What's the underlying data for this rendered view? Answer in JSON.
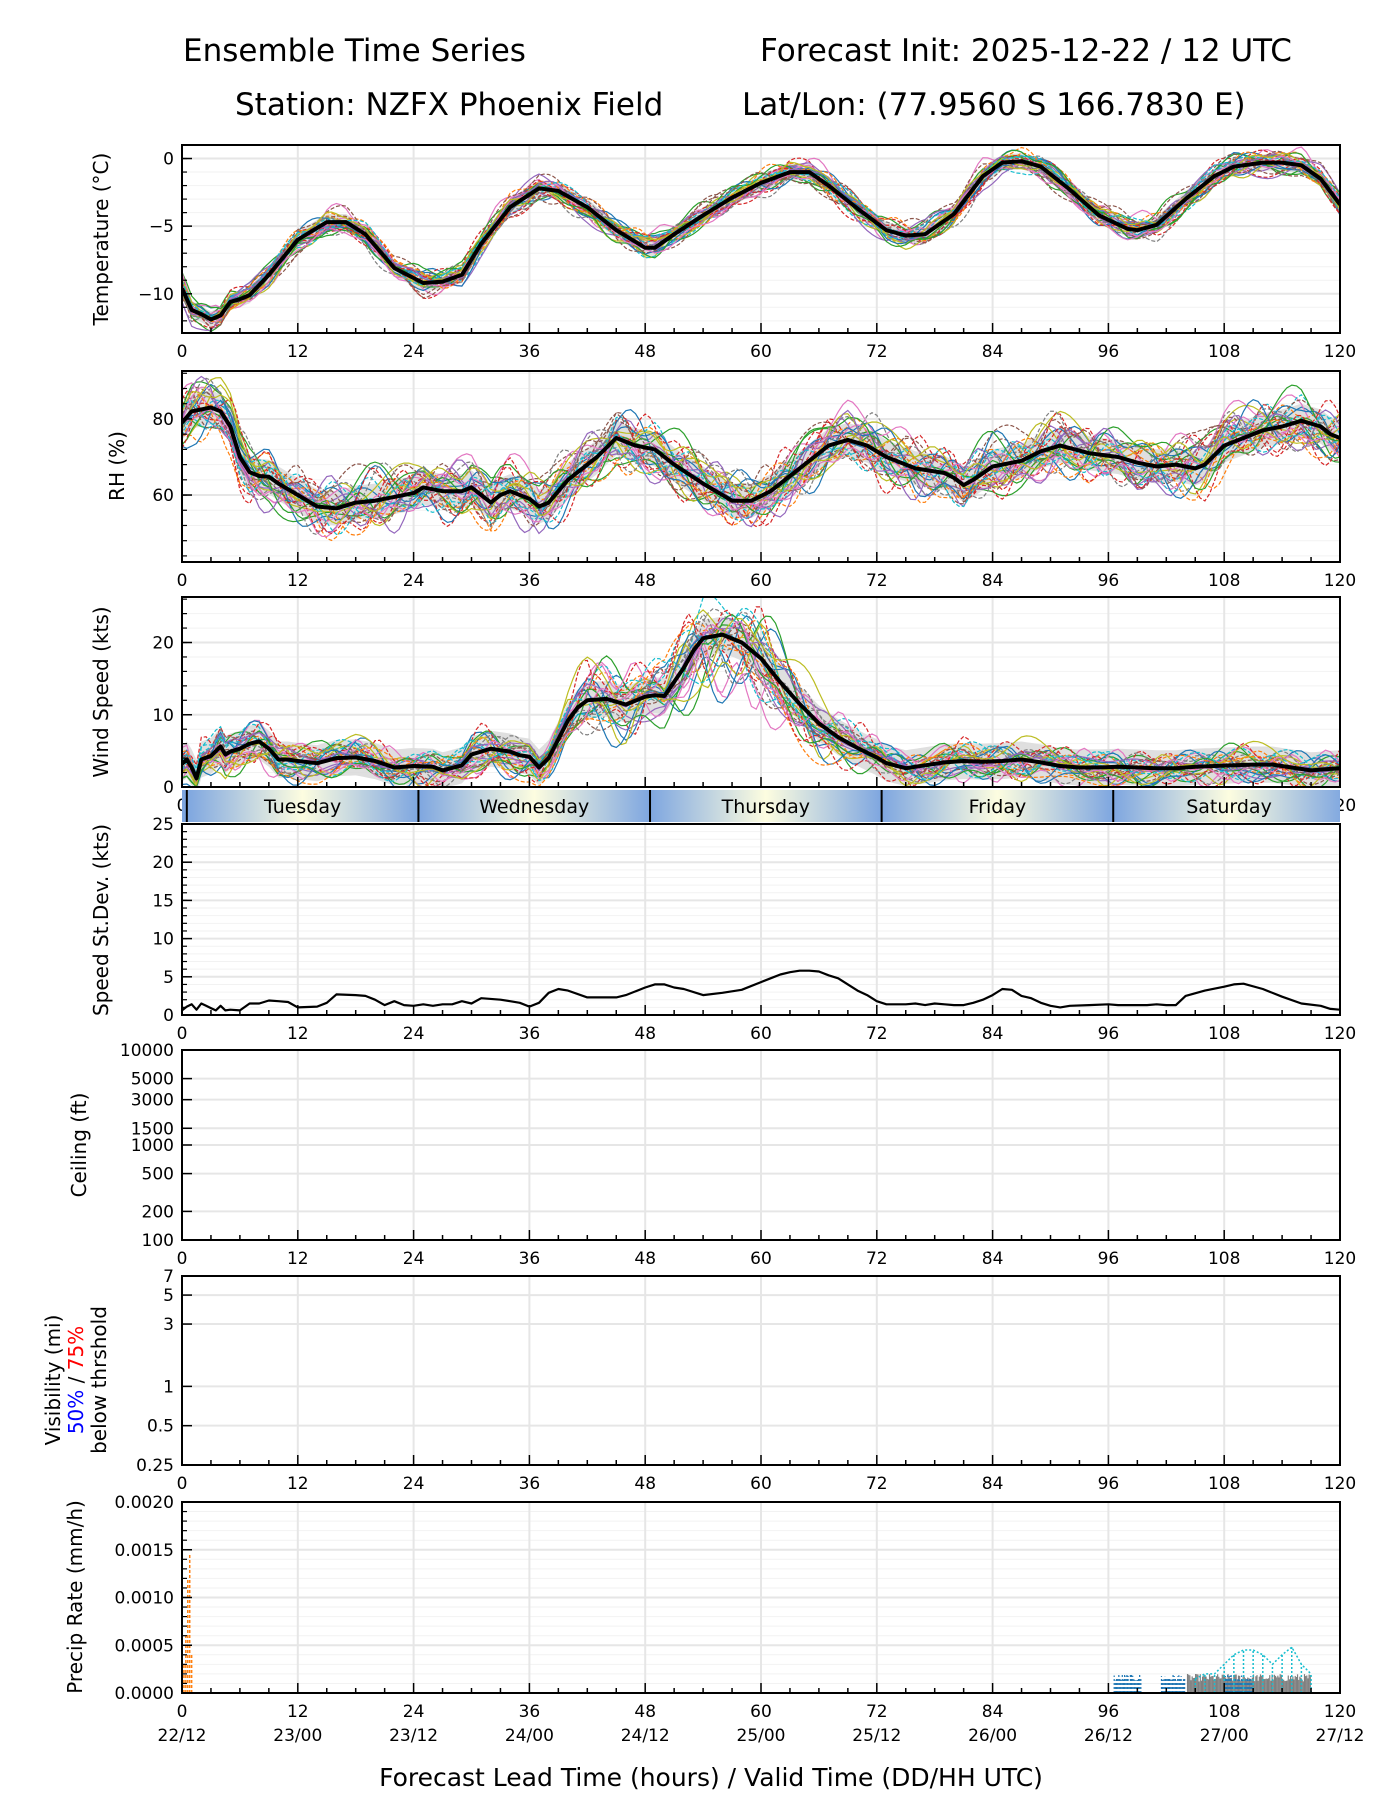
{
  "header": {
    "title_left": "Ensemble Time Series",
    "title_right": "Forecast Init: 2025-12-22 / 12 UTC",
    "station": "Station: NZFX Phoenix Field",
    "latlon": "Lat/Lon: (77.9560 S 166.7830 E)"
  },
  "colors": {
    "mean_line": "#000000",
    "spread_fill": "#d9d9d9",
    "grid": "#e6e6e6",
    "day_band_edge": "#7ea6e0",
    "day_band_center": "#fdfde0",
    "vis_50_label": "#0000ff",
    "vis_75_label": "#ff0000",
    "member_palette": [
      "#1f77b4",
      "#ff7f0e",
      "#2ca02c",
      "#d62728",
      "#9467bd",
      "#8c564b",
      "#e377c2",
      "#7f7f7f",
      "#bcbd22",
      "#17becf"
    ]
  },
  "chart_data": [
    {
      "id": "temperature",
      "type": "line",
      "ylabel": "Temperature (°C)",
      "ylim": [
        -12.9,
        1.0
      ],
      "yticks": [
        0,
        -5,
        -10
      ],
      "ytick_labels": [
        "0",
        "−5",
        "−10"
      ],
      "xlim": [
        0,
        120
      ],
      "xticks": [
        0,
        12,
        24,
        36,
        48,
        60,
        72,
        84,
        96,
        108,
        120
      ],
      "grid": true,
      "mean": {
        "x": [
          0,
          1,
          2,
          3,
          4,
          5,
          6,
          7,
          9,
          12,
          15,
          17,
          19,
          22,
          25,
          27,
          29,
          31,
          34,
          37,
          39,
          42,
          45,
          48,
          49,
          51,
          54,
          57,
          60,
          63,
          65,
          67,
          70,
          73,
          75,
          77,
          80,
          83,
          85,
          87,
          89,
          92,
          95,
          98,
          99,
          101,
          104,
          107,
          109,
          112,
          114,
          116,
          118,
          120
        ],
        "y": [
          -9.6,
          -11.2,
          -11.5,
          -11.9,
          -11.6,
          -10.6,
          -10.4,
          -10.1,
          -8.6,
          -6.0,
          -4.7,
          -4.7,
          -5.6,
          -8.1,
          -9.2,
          -9.1,
          -8.6,
          -6.3,
          -3.6,
          -2.2,
          -2.4,
          -3.6,
          -5.3,
          -6.6,
          -6.6,
          -5.6,
          -4.2,
          -2.9,
          -1.8,
          -1.0,
          -1.0,
          -2.0,
          -3.7,
          -5.3,
          -5.7,
          -5.6,
          -4.1,
          -1.3,
          -0.3,
          -0.2,
          -0.6,
          -2.3,
          -4.2,
          -5.2,
          -5.3,
          -4.9,
          -3.0,
          -1.3,
          -0.6,
          -0.3,
          -0.3,
          -0.5,
          -1.5,
          -3.4
        ]
      },
      "members": 30,
      "spread_halfwidth": 0.6
    },
    {
      "id": "rh",
      "type": "line",
      "ylabel": "RH (%)",
      "ylim": [
        42.4,
        92.6
      ],
      "yticks": [
        60,
        80
      ],
      "ytick_labels": [
        "60",
        "80"
      ],
      "xlim": [
        0,
        120
      ],
      "xticks": [
        0,
        12,
        24,
        36,
        48,
        60,
        72,
        84,
        96,
        108,
        120
      ],
      "grid": true,
      "mean": {
        "x": [
          0,
          1,
          2,
          3,
          4,
          5,
          6,
          7,
          8,
          9,
          10,
          12,
          14,
          16,
          18,
          20,
          22,
          24,
          25,
          27,
          29,
          30,
          31,
          32,
          33,
          34,
          36,
          37,
          38,
          40,
          43,
          45,
          47,
          49,
          51,
          54,
          57,
          59,
          61,
          63,
          65,
          67,
          69,
          71,
          73,
          76,
          79,
          80,
          81,
          82,
          84,
          85,
          87,
          89,
          91,
          94,
          97,
          99,
          101,
          103,
          105,
          106,
          108,
          110,
          112,
          114,
          116,
          118,
          119,
          120
        ],
        "y": [
          79,
          82,
          82.5,
          83,
          82,
          78,
          70,
          66,
          65,
          64.8,
          63,
          60,
          57,
          56.5,
          58,
          58.5,
          59.5,
          60.5,
          62,
          61,
          61,
          62,
          60,
          58,
          60,
          61,
          59,
          57,
          58,
          64,
          70,
          75,
          73,
          72,
          68,
          63,
          58.5,
          58.5,
          61,
          65,
          69,
          73,
          74.5,
          73,
          70,
          67,
          65.8,
          64.5,
          62.6,
          64,
          67.5,
          68,
          69,
          71.5,
          73,
          71,
          70,
          68.5,
          67.5,
          68,
          67,
          68,
          73,
          75,
          77,
          78,
          79.5,
          78,
          76,
          75
        ]
      },
      "members": 30,
      "spread_halfwidth": 4.5
    },
    {
      "id": "wind_speed",
      "type": "line",
      "ylabel": "Wind Speed (kts)",
      "ylim": [
        0,
        26.3
      ],
      "yticks": [
        0,
        10,
        20
      ],
      "ytick_labels": [
        "0",
        "10",
        "20"
      ],
      "xlim": [
        0,
        120
      ],
      "xticks": [
        0,
        12,
        24,
        36,
        48,
        60,
        72,
        84,
        96,
        108,
        120
      ],
      "grid": true,
      "mean": {
        "x": [
          0,
          0.5,
          1,
          1.5,
          2,
          3,
          4,
          4.5,
          5,
          6,
          7,
          8,
          9,
          10,
          11,
          12,
          14,
          16,
          18,
          20,
          22,
          24,
          26,
          27,
          29,
          30,
          32,
          33,
          34,
          35,
          36,
          37,
          38,
          40,
          41,
          42,
          44,
          46,
          48,
          49,
          50,
          52,
          53,
          54,
          56,
          58,
          60,
          62,
          64,
          66,
          68,
          70,
          72,
          73,
          75,
          77,
          79,
          81,
          83,
          85,
          87,
          89,
          91,
          93,
          95,
          97,
          99,
          101,
          103,
          105,
          107,
          109,
          111,
          113,
          115,
          117,
          119,
          120
        ],
        "y": [
          3.2,
          3.8,
          2.7,
          1.2,
          3.8,
          4.3,
          5.6,
          4.5,
          4.9,
          5.3,
          6.0,
          6.3,
          5.3,
          3.8,
          3.8,
          3.6,
          3.3,
          4.0,
          4.1,
          3.6,
          2.7,
          2.9,
          2.8,
          2.3,
          3.0,
          4.5,
          5.3,
          5.1,
          4.9,
          4.4,
          4.2,
          2.7,
          4.0,
          9.2,
          11.0,
          12.0,
          12.2,
          11.4,
          12.5,
          12.7,
          12.6,
          16.5,
          18.9,
          20.6,
          21.1,
          20.0,
          17.8,
          14.5,
          11.5,
          8.8,
          6.9,
          5.4,
          4.1,
          3.3,
          2.6,
          3.0,
          3.4,
          3.6,
          3.5,
          3.6,
          3.8,
          3.4,
          2.9,
          2.7,
          2.7,
          2.8,
          2.7,
          2.6,
          2.6,
          2.8,
          2.9,
          3.0,
          3.1,
          3.1,
          2.7,
          2.3,
          2.5,
          2.6
        ]
      },
      "members": 30,
      "spread_halfwidth": 2.5
    },
    {
      "id": "speed_stdev",
      "type": "line",
      "ylabel": "Speed St.Dev. (kts)",
      "ylim": [
        0,
        25
      ],
      "yticks": [
        0,
        5,
        10,
        15,
        20,
        25
      ],
      "ytick_labels": [
        "0",
        "5",
        "10",
        "15",
        "20",
        "25"
      ],
      "xlim": [
        0,
        120
      ],
      "xticks": [
        0,
        12,
        24,
        36,
        48,
        60,
        72,
        84,
        96,
        108,
        120
      ],
      "grid": true,
      "x": [
        0,
        0.5,
        1,
        1.5,
        2,
        2.5,
        3,
        3.5,
        4,
        4.5,
        5,
        6,
        7,
        8,
        9,
        10,
        11,
        12,
        14,
        15,
        16,
        18,
        19,
        20,
        21,
        22,
        23,
        24,
        25,
        26,
        27,
        28,
        29,
        30,
        31,
        33,
        34,
        35,
        36,
        37,
        38,
        39,
        40,
        42,
        45,
        46,
        48,
        49,
        50,
        51,
        52,
        54,
        56,
        58,
        60,
        61,
        62,
        63,
        64,
        65,
        66,
        67,
        68,
        70,
        71,
        72,
        73,
        74,
        75,
        76,
        77,
        78,
        79,
        80,
        81,
        82,
        83,
        84,
        85,
        86,
        87,
        88,
        89,
        90,
        91,
        92,
        94,
        96,
        97,
        98,
        100,
        101,
        102,
        103,
        104,
        106,
        108,
        109,
        110,
        112,
        114,
        116,
        118,
        119,
        120
      ],
      "values": [
        0.6,
        1.1,
        1.4,
        0.7,
        1.5,
        1.2,
        0.9,
        0.6,
        1.2,
        0.6,
        0.7,
        0.6,
        1.5,
        1.5,
        1.9,
        1.8,
        1.7,
        1.0,
        1.1,
        1.6,
        2.7,
        2.6,
        2.5,
        2.0,
        1.3,
        1.8,
        1.3,
        1.2,
        1.4,
        1.2,
        1.4,
        1.4,
        1.8,
        1.5,
        2.2,
        2.0,
        1.8,
        1.6,
        1.1,
        1.6,
        2.9,
        3.4,
        3.2,
        2.3,
        2.3,
        2.6,
        3.6,
        4.0,
        4.0,
        3.6,
        3.4,
        2.6,
        2.9,
        3.3,
        4.3,
        4.8,
        5.3,
        5.6,
        5.8,
        5.8,
        5.7,
        5.2,
        4.8,
        3.2,
        2.6,
        1.8,
        1.4,
        1.4,
        1.4,
        1.5,
        1.3,
        1.5,
        1.4,
        1.3,
        1.3,
        1.6,
        2.0,
        2.6,
        3.4,
        3.3,
        2.5,
        2.2,
        1.6,
        1.2,
        1.0,
        1.2,
        1.3,
        1.4,
        1.3,
        1.3,
        1.3,
        1.4,
        1.3,
        1.3,
        2.5,
        3.2,
        3.7,
        4.0,
        4.1,
        3.4,
        2.4,
        1.5,
        1.2,
        0.8,
        0.7
      ]
    },
    {
      "id": "ceiling",
      "type": "line",
      "ylabel": "Ceiling (ft)",
      "yscale": "log",
      "ylim": [
        100,
        10000
      ],
      "yticks": [
        100,
        200,
        500,
        1000,
        1500,
        3000,
        5000,
        10000
      ],
      "ytick_labels": [
        "100",
        "200",
        "500",
        "1000",
        "1500",
        "3000",
        "5000",
        "10000"
      ],
      "xlim": [
        0,
        120
      ],
      "xticks": [
        0,
        12,
        24,
        36,
        48,
        60,
        72,
        84,
        96,
        108,
        120
      ],
      "grid": true,
      "series": []
    },
    {
      "id": "visibility",
      "type": "line",
      "ylabel": "Visibility (mi)",
      "ylabel_50": "50%",
      "ylabel_sep": " / ",
      "ylabel_75": "75%",
      "ylabel_below": "below thrshold",
      "yscale": "log",
      "ylim": [
        0.25,
        7
      ],
      "yticks": [
        0.25,
        0.5,
        1,
        3,
        5,
        7
      ],
      "ytick_labels": [
        "0.25",
        "0.5",
        "1",
        "3",
        "5",
        "7"
      ],
      "xlim": [
        0,
        120
      ],
      "xticks": [
        0,
        12,
        24,
        36,
        48,
        60,
        72,
        84,
        96,
        108,
        120
      ],
      "grid": true,
      "series": []
    },
    {
      "id": "precip_rate",
      "type": "line",
      "ylabel": "Precip Rate (mm/h)",
      "ylim": [
        0,
        0.002
      ],
      "yticks": [
        0,
        0.0005,
        0.001,
        0.0015,
        0.002
      ],
      "ytick_labels": [
        "0.0000",
        "0.0005",
        "0.0010",
        "0.0015",
        "0.0020"
      ],
      "xlim": [
        0,
        120
      ],
      "xticks": [
        0,
        12,
        24,
        36,
        48,
        60,
        72,
        84,
        96,
        108,
        120
      ],
      "xtick_labels_valid": [
        "22/12",
        "23/00",
        "23/12",
        "24/00",
        "24/12",
        "25/00",
        "25/12",
        "26/00",
        "26/12",
        "27/00",
        "27/12"
      ],
      "xlabel": "Forecast Lead Time (hours) / Valid Time (DD/HH UTC)",
      "grid": true,
      "series": [
        {
          "name": "member-orange",
          "color": "#ff7f0e",
          "style": "dashed",
          "x": [
            0,
            0.2,
            0.4,
            0.6,
            0.8,
            1.0
          ],
          "y": [
            0.0004,
            0.0003,
            0.0006,
            0.0012,
            0.00145,
            0.0004
          ]
        },
        {
          "name": "member-blue-a",
          "color": "#1f77b4",
          "style": "dotted",
          "x_range": [
            96.6,
            99.4
          ],
          "y_max": 0.0002
        },
        {
          "name": "member-blue-b",
          "color": "#1f77b4",
          "style": "dotted",
          "x_range": [
            101.5,
            104.0
          ],
          "y_max": 0.0002
        },
        {
          "name": "member-gray",
          "color": "#7f7f7f",
          "style": "solid",
          "x_range": [
            104.2,
            117.0
          ],
          "y_max": 0.0002
        },
        {
          "name": "member-blue-c",
          "color": "#1f77b4",
          "style": "dotted",
          "x_range": [
            108.0,
            111.0
          ],
          "y_max": 0.0002
        },
        {
          "name": "member-cyan",
          "color": "#17becf",
          "style": "dotted",
          "x": [
            105,
            106,
            107,
            108,
            109,
            110,
            111,
            112,
            113,
            114,
            115,
            116,
            117
          ],
          "y": [
            0.00015,
            0.0002,
            0.0002,
            0.0003,
            0.0004,
            0.00045,
            0.00045,
            0.0004,
            0.0003,
            0.0004,
            0.00048,
            0.0003,
            0.0002
          ]
        }
      ]
    }
  ],
  "day_band": {
    "labels": [
      "Tuesday",
      "Wednesday",
      "Thursday",
      "Friday",
      "Saturday"
    ],
    "boundaries_hours": [
      0.5,
      24.5,
      48.5,
      72.5,
      96.5
    ]
  }
}
